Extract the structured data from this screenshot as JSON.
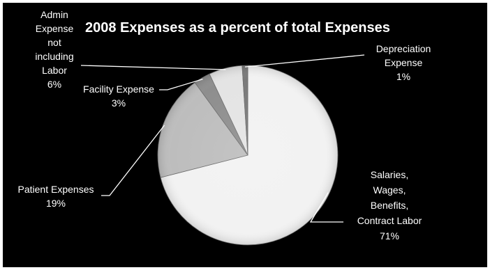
{
  "chart_data": {
    "type": "pie",
    "title": "2008 Expenses as a percent of total Expenses",
    "slices": [
      {
        "label": "Salaries, Wages, Benefits, Contract Labor",
        "value": 71,
        "value_label": "71%",
        "color": "#f2f2f2"
      },
      {
        "label": "Patient Expenses",
        "value": 19,
        "value_label": "19%",
        "color": "#bdbdbd"
      },
      {
        "label": "Facility Expense",
        "value": 3,
        "value_label": "3%",
        "color": "#8e8e8e"
      },
      {
        "label": "Admin Expense not including Labor",
        "value": 6,
        "value_label": "6%",
        "color": "#e4e4e4"
      },
      {
        "label": "Depreciation Expense",
        "value": 1,
        "value_label": "1%",
        "color": "#7a7a7a"
      }
    ],
    "colors": {
      "background": "#000000",
      "frame": "#ffffff",
      "text": "#ffffff",
      "leader": "#ffffff"
    }
  }
}
